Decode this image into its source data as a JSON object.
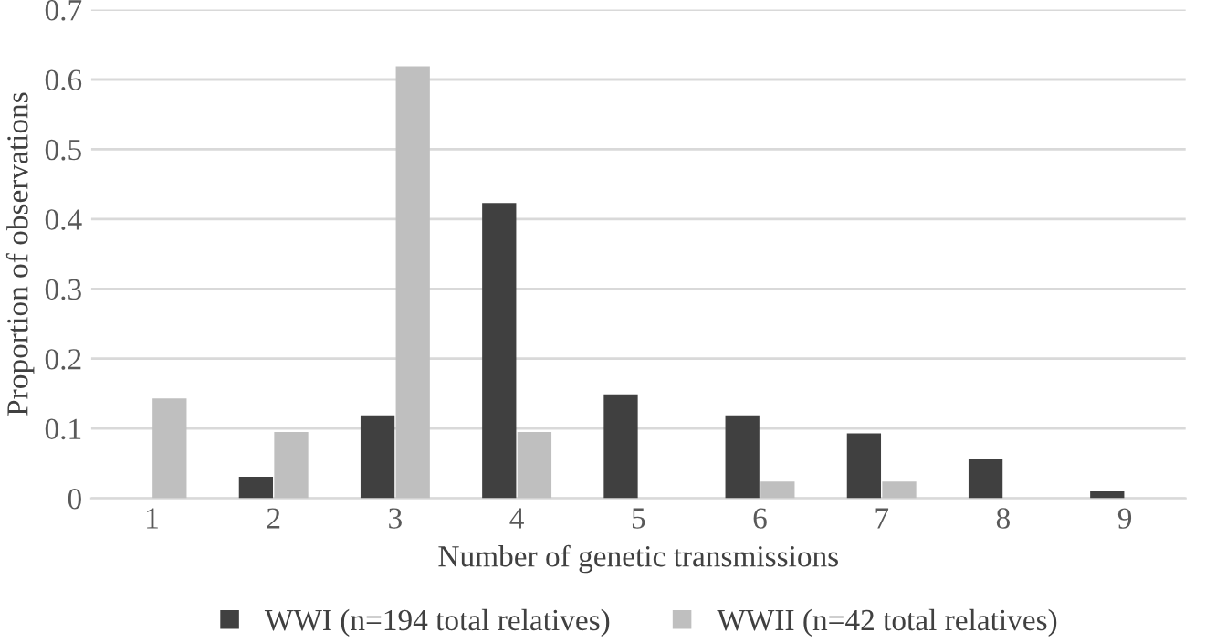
{
  "chart_data": {
    "type": "bar",
    "xlabel": "Number of genetic transmissions",
    "ylabel": "Proportion of observations",
    "categories": [
      "1",
      "2",
      "3",
      "4",
      "5",
      "6",
      "7",
      "8",
      "9"
    ],
    "series": [
      {
        "name": "WWI (n=194 total relatives)",
        "color": "#404040",
        "values": [
          0,
          0.031,
          0.119,
          0.423,
          0.149,
          0.119,
          0.093,
          0.057,
          0.01
        ]
      },
      {
        "name": "WWII (n=42 total relatives)",
        "color": "#bfbfbf",
        "values": [
          0.143,
          0.095,
          0.619,
          0.095,
          0,
          0.024,
          0.024,
          0,
          0
        ]
      }
    ],
    "ylim": [
      0,
      0.7
    ],
    "yticks": [
      {
        "value": 0,
        "label": "0"
      },
      0.1,
      0.2,
      0.3,
      0.4,
      0.5,
      0.6,
      0.7
    ],
    "grid": "y",
    "legend": "bottom"
  }
}
